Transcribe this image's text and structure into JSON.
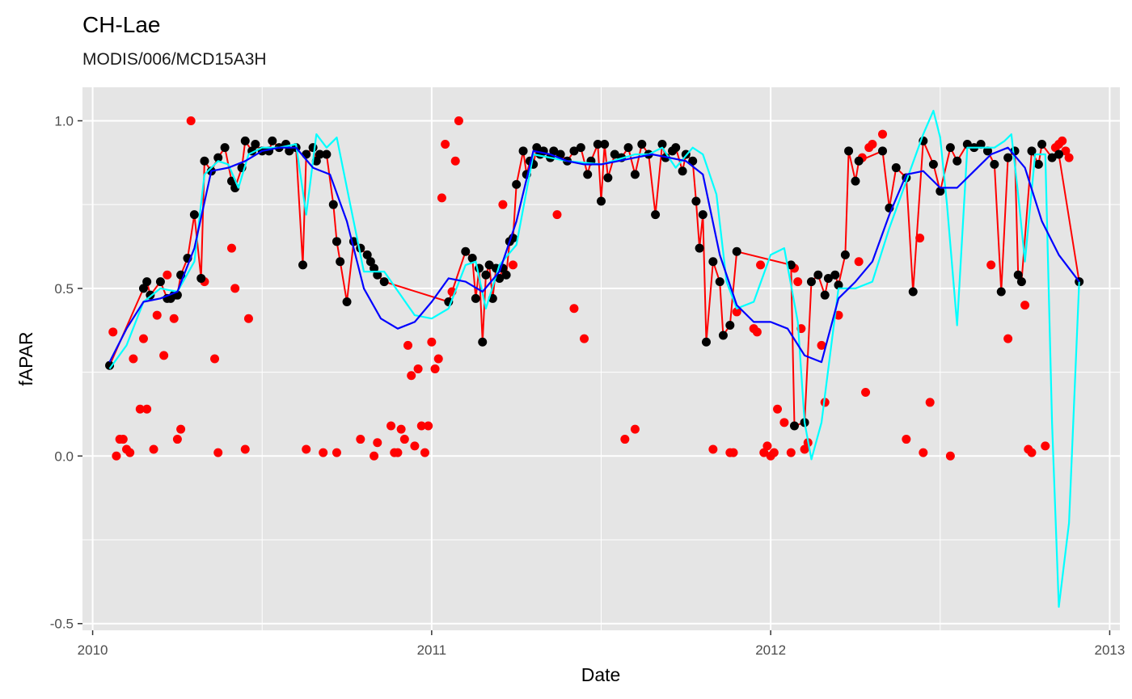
{
  "chart_data": {
    "type": "scatter",
    "title": "CH-Lae",
    "subtitle": "MODIS/006/MCD15A3H",
    "xlabel": "Date",
    "ylabel": "fAPAR",
    "xlim": [
      2009.97,
      2013.03
    ],
    "ylim": [
      -0.52,
      1.1
    ],
    "x_ticks": [
      2010,
      2011,
      2012,
      2013
    ],
    "x_tick_labels": [
      "2010",
      "2011",
      "2012",
      "2013"
    ],
    "y_ticks": [
      -0.5,
      0.0,
      0.5,
      1.0
    ],
    "y_tick_labels": [
      "-0.5",
      "0.0",
      "0.5",
      "1.0"
    ],
    "grid": true,
    "legend": "none",
    "colors": {
      "panel": "#e5e5e5",
      "grid": "#ffffff",
      "raw_points": "#ff0000",
      "filtered_points": "#000000",
      "filtered_line": "#ff0000",
      "spline_fit": "#00ffff",
      "smooth_fit": "#0000ff"
    },
    "series": [
      {
        "role": "raw-points",
        "x": [
          2010.06,
          2010.07,
          2010.08,
          2010.09,
          2010.1,
          2010.11,
          2010.12,
          2010.14,
          2010.15,
          2010.16,
          2010.18,
          2010.19,
          2010.21,
          2010.22,
          2010.24,
          2010.25,
          2010.26,
          2010.29,
          2010.33,
          2010.36,
          2010.37,
          2010.41,
          2010.42,
          2010.45,
          2010.46,
          2010.63,
          2010.68,
          2010.72,
          2010.79,
          2010.83,
          2010.84,
          2010.88,
          2010.89,
          2010.9,
          2010.91,
          2010.92,
          2010.93,
          2010.94,
          2010.95,
          2010.96,
          2010.97,
          2010.98,
          2010.99,
          2011.0,
          2011.01,
          2011.02,
          2011.03,
          2011.04,
          2011.06,
          2011.07,
          2011.08,
          2011.21,
          2011.24,
          2011.37,
          2011.42,
          2011.45,
          2011.57,
          2011.6,
          2011.83,
          2011.88,
          2011.89,
          2011.9,
          2011.95,
          2011.96,
          2011.97,
          2011.98,
          2011.99,
          2012.0,
          2012.01,
          2012.02,
          2012.04,
          2012.06,
          2012.07,
          2012.08,
          2012.09,
          2012.1,
          2012.11,
          2012.15,
          2012.16,
          2012.2,
          2012.26,
          2012.27,
          2012.28,
          2012.29,
          2012.3,
          2012.33,
          2012.4,
          2012.44,
          2012.45,
          2012.47,
          2012.53,
          2012.65,
          2012.7,
          2012.75,
          2012.76,
          2012.77,
          2012.81,
          2012.84,
          2012.85,
          2012.86,
          2012.87,
          2012.88
        ],
        "y": [
          0.37,
          0.0,
          0.05,
          0.05,
          0.02,
          0.01,
          0.29,
          0.14,
          0.35,
          0.14,
          0.02,
          0.42,
          0.3,
          0.54,
          0.41,
          0.05,
          0.08,
          1.0,
          0.52,
          0.29,
          0.01,
          0.62,
          0.5,
          0.02,
          0.41,
          0.02,
          0.01,
          0.01,
          0.05,
          0.0,
          0.04,
          0.09,
          0.01,
          0.01,
          0.08,
          0.05,
          0.33,
          0.24,
          0.03,
          0.26,
          0.09,
          0.01,
          0.09,
          0.34,
          0.26,
          0.29,
          0.77,
          0.93,
          0.49,
          0.88,
          1.0,
          0.75,
          0.57,
          0.72,
          0.44,
          0.35,
          0.05,
          0.08,
          0.02,
          0.01,
          0.01,
          0.43,
          0.38,
          0.37,
          0.57,
          0.01,
          0.03,
          0.0,
          0.01,
          0.14,
          0.1,
          0.01,
          0.56,
          0.52,
          0.38,
          0.02,
          0.04,
          0.33,
          0.16,
          0.42,
          0.58,
          0.89,
          0.19,
          0.92,
          0.93,
          0.96,
          0.05,
          0.65,
          0.01,
          0.16,
          0.0,
          0.57,
          0.35,
          0.45,
          0.02,
          0.01,
          0.03,
          0.92,
          0.93,
          0.94,
          0.91,
          0.89
        ]
      },
      {
        "role": "filtered-points-and-line",
        "x": [
          2010.05,
          2010.15,
          2010.16,
          2010.17,
          2010.2,
          2010.22,
          2010.23,
          2010.24,
          2010.25,
          2010.26,
          2010.28,
          2010.3,
          2010.32,
          2010.33,
          2010.35,
          2010.37,
          2010.39,
          2010.41,
          2010.42,
          2010.44,
          2010.45,
          2010.47,
          2010.48,
          2010.5,
          2010.52,
          2010.53,
          2010.55,
          2010.57,
          2010.58,
          2010.6,
          2010.62,
          2010.63,
          2010.65,
          2010.66,
          2010.67,
          2010.69,
          2010.71,
          2010.72,
          2010.73,
          2010.75,
          2010.77,
          2010.79,
          2010.81,
          2010.82,
          2010.83,
          2010.84,
          2010.86,
          2011.05,
          2011.1,
          2011.12,
          2011.13,
          2011.14,
          2011.15,
          2011.16,
          2011.17,
          2011.18,
          2011.19,
          2011.2,
          2011.21,
          2011.22,
          2011.23,
          2011.24,
          2011.25,
          2011.27,
          2011.28,
          2011.29,
          2011.3,
          2011.31,
          2011.32,
          2011.33,
          2011.35,
          2011.36,
          2011.38,
          2011.4,
          2011.42,
          2011.44,
          2011.46,
          2011.47,
          2011.49,
          2011.5,
          2011.51,
          2011.52,
          2011.54,
          2011.56,
          2011.58,
          2011.6,
          2011.62,
          2011.64,
          2011.66,
          2011.68,
          2011.69,
          2011.71,
          2011.72,
          2011.74,
          2011.75,
          2011.77,
          2011.78,
          2011.79,
          2011.8,
          2011.81,
          2011.83,
          2011.85,
          2011.86,
          2011.88,
          2011.9,
          2012.06,
          2012.07,
          2012.1,
          2012.12,
          2012.14,
          2012.16,
          2012.17,
          2012.19,
          2012.2,
          2012.22,
          2012.23,
          2012.25,
          2012.26,
          2012.33,
          2012.35,
          2012.37,
          2012.4,
          2012.42,
          2012.45,
          2012.48,
          2012.5,
          2012.53,
          2012.55,
          2012.58,
          2012.6,
          2012.62,
          2012.64,
          2012.66,
          2012.68,
          2012.7,
          2012.72,
          2012.73,
          2012.74,
          2012.77,
          2012.79,
          2012.8,
          2012.83,
          2012.85,
          2012.91
        ],
        "y": [
          0.27,
          0.5,
          0.52,
          0.48,
          0.52,
          0.47,
          0.47,
          0.48,
          0.48,
          0.54,
          0.59,
          0.72,
          0.53,
          0.88,
          0.85,
          0.89,
          0.92,
          0.82,
          0.8,
          0.86,
          0.94,
          0.91,
          0.93,
          0.91,
          0.91,
          0.94,
          0.92,
          0.93,
          0.91,
          0.92,
          0.57,
          0.9,
          0.92,
          0.88,
          0.9,
          0.9,
          0.75,
          0.64,
          0.58,
          0.46,
          0.64,
          0.62,
          0.6,
          0.58,
          0.56,
          0.54,
          0.52,
          0.46,
          0.61,
          0.59,
          0.47,
          0.56,
          0.34,
          0.54,
          0.57,
          0.47,
          0.56,
          0.53,
          0.56,
          0.54,
          0.64,
          0.65,
          0.81,
          0.91,
          0.84,
          0.88,
          0.87,
          0.92,
          0.9,
          0.91,
          0.89,
          0.91,
          0.9,
          0.88,
          0.91,
          0.92,
          0.84,
          0.88,
          0.93,
          0.76,
          0.93,
          0.83,
          0.9,
          0.89,
          0.92,
          0.84,
          0.93,
          0.9,
          0.72,
          0.93,
          0.89,
          0.91,
          0.92,
          0.85,
          0.9,
          0.88,
          0.76,
          0.62,
          0.72,
          0.34,
          0.58,
          0.52,
          0.36,
          0.39,
          0.61,
          0.57,
          0.09,
          0.1,
          0.52,
          0.54,
          0.48,
          0.53,
          0.54,
          0.51,
          0.6,
          0.91,
          0.82,
          0.88,
          0.91,
          0.74,
          0.86,
          0.83,
          0.49,
          0.94,
          0.87,
          0.79,
          0.92,
          0.88,
          0.93,
          0.92,
          0.93,
          0.91,
          0.87,
          0.49,
          0.89,
          0.91,
          0.54,
          0.52,
          0.91,
          0.87,
          0.93,
          0.89,
          0.9,
          0.52
        ]
      },
      {
        "role": "spline-fit",
        "x": [
          2010.05,
          2010.1,
          2010.15,
          2010.2,
          2010.25,
          2010.3,
          2010.33,
          2010.37,
          2010.4,
          2010.43,
          2010.46,
          2010.5,
          2010.55,
          2010.6,
          2010.63,
          2010.66,
          2010.69,
          2010.72,
          2010.76,
          2010.8,
          2010.86,
          2010.95,
          2011.0,
          2011.05,
          2011.1,
          2011.13,
          2011.16,
          2011.2,
          2011.25,
          2011.3,
          2011.4,
          2011.5,
          2011.6,
          2011.64,
          2011.68,
          2011.72,
          2011.77,
          2011.8,
          2011.84,
          2011.87,
          2011.9,
          2011.95,
          2012.0,
          2012.04,
          2012.08,
          2012.1,
          2012.12,
          2012.15,
          2012.2,
          2012.25,
          2012.3,
          2012.35,
          2012.4,
          2012.45,
          2012.48,
          2012.5,
          2012.52,
          2012.55,
          2012.58,
          2012.62,
          2012.66,
          2012.69,
          2012.71,
          2012.73,
          2012.75,
          2012.78,
          2012.81,
          2012.83,
          2012.85,
          2012.88,
          2012.91
        ],
        "y": [
          0.26,
          0.33,
          0.46,
          0.5,
          0.49,
          0.58,
          0.84,
          0.88,
          0.87,
          0.8,
          0.9,
          0.92,
          0.92,
          0.93,
          0.72,
          0.96,
          0.92,
          0.95,
          0.75,
          0.55,
          0.55,
          0.42,
          0.41,
          0.44,
          0.57,
          0.58,
          0.44,
          0.57,
          0.63,
          0.9,
          0.88,
          0.87,
          0.9,
          0.9,
          0.92,
          0.86,
          0.92,
          0.9,
          0.78,
          0.52,
          0.44,
          0.46,
          0.6,
          0.62,
          0.4,
          0.1,
          -0.01,
          0.1,
          0.5,
          0.5,
          0.52,
          0.68,
          0.82,
          0.96,
          1.03,
          0.95,
          0.75,
          0.39,
          0.92,
          0.92,
          0.92,
          0.94,
          0.96,
          0.78,
          0.58,
          0.9,
          0.9,
          0.1,
          -0.45,
          -0.2,
          0.52
        ]
      },
      {
        "role": "smooth-fit",
        "x": [
          2010.05,
          2010.1,
          2010.15,
          2010.2,
          2010.25,
          2010.3,
          2010.35,
          2010.4,
          2010.45,
          2010.5,
          2010.55,
          2010.6,
          2010.65,
          2010.7,
          2010.75,
          2010.8,
          2010.85,
          2010.9,
          2010.95,
          2011.0,
          2011.05,
          2011.1,
          2011.15,
          2011.2,
          2011.25,
          2011.3,
          2011.35,
          2011.4,
          2011.45,
          2011.5,
          2011.55,
          2011.6,
          2011.65,
          2011.7,
          2011.75,
          2011.8,
          2011.85,
          2011.9,
          2011.95,
          2012.0,
          2012.05,
          2012.1,
          2012.15,
          2012.2,
          2012.25,
          2012.3,
          2012.35,
          2012.4,
          2012.45,
          2012.5,
          2012.55,
          2012.6,
          2012.65,
          2012.7,
          2012.75,
          2012.8,
          2012.85,
          2012.91
        ],
        "y": [
          0.28,
          0.38,
          0.46,
          0.47,
          0.49,
          0.62,
          0.85,
          0.86,
          0.88,
          0.91,
          0.92,
          0.92,
          0.86,
          0.84,
          0.7,
          0.5,
          0.41,
          0.38,
          0.4,
          0.46,
          0.53,
          0.52,
          0.49,
          0.55,
          0.7,
          0.91,
          0.9,
          0.88,
          0.87,
          0.87,
          0.88,
          0.89,
          0.9,
          0.89,
          0.88,
          0.84,
          0.6,
          0.45,
          0.4,
          0.4,
          0.38,
          0.3,
          0.28,
          0.47,
          0.52,
          0.58,
          0.72,
          0.84,
          0.85,
          0.8,
          0.8,
          0.85,
          0.9,
          0.92,
          0.86,
          0.7,
          0.6,
          0.52
        ]
      }
    ]
  }
}
